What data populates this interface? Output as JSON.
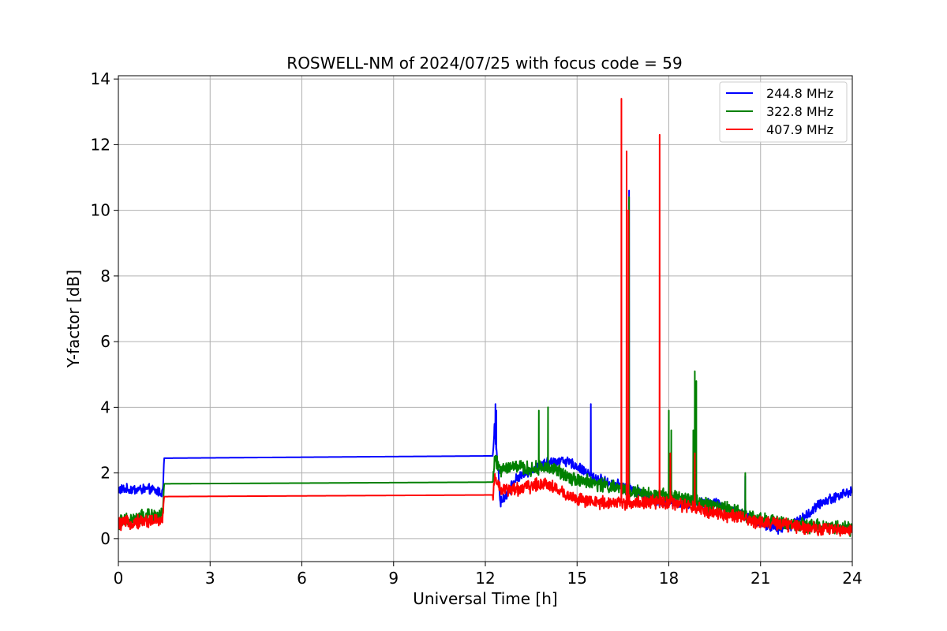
{
  "chart_data": {
    "type": "line",
    "title": "ROSWELL-NM of 2024/07/25 with focus code = 59",
    "xlabel": "Universal Time [h]",
    "ylabel": "Y-factor [dB]",
    "xlim": [
      0,
      24
    ],
    "ylim": [
      -0.7,
      14.1
    ],
    "xticks": [
      0,
      3,
      6,
      9,
      12,
      15,
      18,
      21,
      24
    ],
    "yticks": [
      0,
      2,
      4,
      6,
      8,
      10,
      12,
      14
    ],
    "grid": true,
    "legend_position": "top-right",
    "series": [
      {
        "name": "244.8 MHz",
        "color": "#0000ff",
        "base": [
          [
            0,
            1.5
          ],
          [
            0.5,
            1.5
          ],
          [
            1.0,
            1.5
          ],
          [
            1.45,
            1.4
          ],
          [
            1.5,
            2.45
          ],
          [
            12.25,
            2.52
          ],
          [
            12.3,
            3.4
          ],
          [
            12.5,
            1.1
          ],
          [
            13.0,
            1.8
          ],
          [
            13.5,
            2.1
          ],
          [
            14.0,
            2.3
          ],
          [
            14.5,
            2.4
          ],
          [
            15.0,
            2.2
          ],
          [
            15.5,
            1.9
          ],
          [
            16.0,
            1.7
          ],
          [
            16.5,
            1.6
          ],
          [
            17.0,
            1.4
          ],
          [
            17.5,
            1.2
          ],
          [
            18.0,
            1.1
          ],
          [
            18.5,
            1.1
          ],
          [
            19.0,
            1.1
          ],
          [
            19.5,
            1.1
          ],
          [
            20.0,
            0.9
          ],
          [
            20.5,
            0.7
          ],
          [
            21.0,
            0.5
          ],
          [
            21.5,
            0.3
          ],
          [
            22.0,
            0.4
          ],
          [
            22.5,
            0.7
          ],
          [
            23.0,
            1.1
          ],
          [
            23.5,
            1.3
          ],
          [
            24.0,
            1.45
          ]
        ],
        "noise": 0.13,
        "spikes": [
          [
            12.3,
            3.5
          ],
          [
            12.33,
            4.1
          ],
          [
            12.36,
            3.9
          ],
          [
            15.45,
            4.1
          ],
          [
            16.7,
            10.6
          ],
          [
            20.5,
            1.9
          ]
        ]
      },
      {
        "name": "322.8 MHz",
        "color": "#008000",
        "base": [
          [
            0,
            0.5
          ],
          [
            0.5,
            0.6
          ],
          [
            1.0,
            0.7
          ],
          [
            1.45,
            0.7
          ],
          [
            1.5,
            1.67
          ],
          [
            12.25,
            1.72
          ],
          [
            12.3,
            2.4
          ],
          [
            12.5,
            2.1
          ],
          [
            13.0,
            2.2
          ],
          [
            13.5,
            2.1
          ],
          [
            14.0,
            2.2
          ],
          [
            14.5,
            2.0
          ],
          [
            15.0,
            1.8
          ],
          [
            15.5,
            1.7
          ],
          [
            16.0,
            1.6
          ],
          [
            16.5,
            1.5
          ],
          [
            17.0,
            1.4
          ],
          [
            17.5,
            1.3
          ],
          [
            18.0,
            1.3
          ],
          [
            18.5,
            1.2
          ],
          [
            19.0,
            1.1
          ],
          [
            19.5,
            1.0
          ],
          [
            20.0,
            0.9
          ],
          [
            20.5,
            0.7
          ],
          [
            21.0,
            0.6
          ],
          [
            21.5,
            0.5
          ],
          [
            22.0,
            0.45
          ],
          [
            22.5,
            0.4
          ],
          [
            23.0,
            0.35
          ],
          [
            23.5,
            0.35
          ],
          [
            24.0,
            0.3
          ]
        ],
        "noise": 0.18,
        "spikes": [
          [
            13.75,
            3.9
          ],
          [
            14.05,
            4.0
          ],
          [
            16.7,
            10.4
          ],
          [
            18.0,
            3.9
          ],
          [
            18.08,
            3.3
          ],
          [
            18.8,
            3.3
          ],
          [
            18.85,
            5.1
          ],
          [
            18.9,
            4.8
          ],
          [
            20.5,
            2.0
          ]
        ]
      },
      {
        "name": "407.9 MHz",
        "color": "#ff0000",
        "base": [
          [
            0,
            0.45
          ],
          [
            0.5,
            0.5
          ],
          [
            1.0,
            0.55
          ],
          [
            1.45,
            0.55
          ],
          [
            1.5,
            1.28
          ],
          [
            12.25,
            1.33
          ],
          [
            12.3,
            1.9
          ],
          [
            12.5,
            1.5
          ],
          [
            13.0,
            1.5
          ],
          [
            13.5,
            1.6
          ],
          [
            14.0,
            1.7
          ],
          [
            14.5,
            1.4
          ],
          [
            15.0,
            1.2
          ],
          [
            15.5,
            1.1
          ],
          [
            16.0,
            1.1
          ],
          [
            16.5,
            1.1
          ],
          [
            17.0,
            1.1
          ],
          [
            17.5,
            1.1
          ],
          [
            18.0,
            1.1
          ],
          [
            18.5,
            1.0
          ],
          [
            19.0,
            0.9
          ],
          [
            19.5,
            0.8
          ],
          [
            20.0,
            0.7
          ],
          [
            20.5,
            0.6
          ],
          [
            21.0,
            0.5
          ],
          [
            21.5,
            0.45
          ],
          [
            22.0,
            0.4
          ],
          [
            22.5,
            0.35
          ],
          [
            23.0,
            0.3
          ],
          [
            23.5,
            0.28
          ],
          [
            24.0,
            0.25
          ]
        ],
        "noise": 0.17,
        "spikes": [
          [
            16.45,
            13.4
          ],
          [
            16.62,
            11.8
          ],
          [
            16.68,
            10.0
          ],
          [
            17.7,
            12.3
          ],
          [
            18.05,
            2.6
          ],
          [
            18.85,
            2.6
          ]
        ]
      }
    ]
  }
}
